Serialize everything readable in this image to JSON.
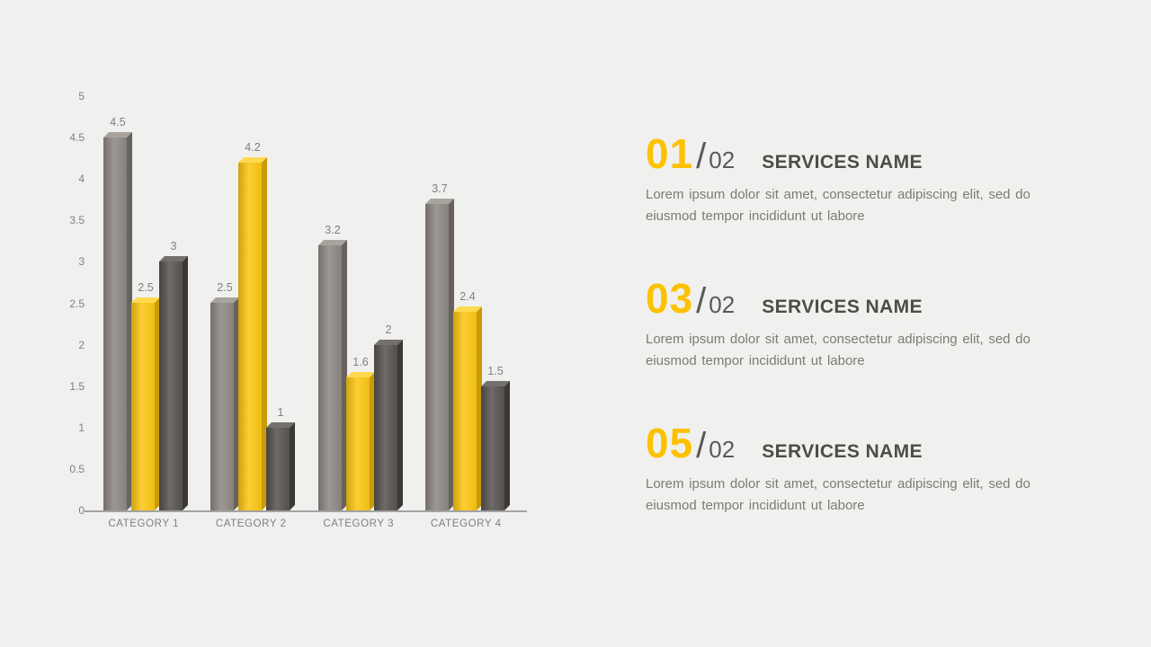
{
  "background_color": "#f0f0ee",
  "accent_color": "#fcc200",
  "chart_data": {
    "type": "bar",
    "categories": [
      "CATEGORY 1",
      "CATEGORY 2",
      "CATEGORY 3",
      "CATEGORY 4"
    ],
    "series": [
      {
        "name": "series-gray",
        "values": [
          4.5,
          2.5,
          3.2,
          3.7
        ],
        "colors": {
          "front": "#8d8782",
          "top": "#a8a39d",
          "side": "#67625e"
        }
      },
      {
        "name": "series-yellow",
        "values": [
          2.5,
          4.2,
          1.6,
          2.4
        ],
        "colors": {
          "front": "#fcc612",
          "top": "#ffd94f",
          "side": "#c89b0a"
        }
      },
      {
        "name": "series-dark",
        "values": [
          3,
          1,
          2,
          1.5
        ],
        "colors": {
          "front": "#57534f",
          "top": "#74706c",
          "side": "#3b3835"
        }
      }
    ],
    "ylim": [
      0,
      5
    ],
    "ytick_step": 0.5,
    "yticks": [
      "5",
      "4.5",
      "4",
      "3.5",
      "3",
      "2.5",
      "2",
      "1.5",
      "1",
      "0.5",
      "0"
    ],
    "grid": false,
    "legend": false,
    "title": "",
    "xlabel": "",
    "ylabel": "",
    "label_color": "#7f7f7f",
    "axis_color": "#a3a3a3"
  },
  "services": [
    {
      "number": "01",
      "slash": "/",
      "total": "02",
      "title": "SERVICES NAME",
      "body": "Lorem ipsum dolor sit amet, consectetur adipiscing elit, sed do eiusmod tempor incididunt ut labore"
    },
    {
      "number": "03",
      "slash": "/",
      "total": "02",
      "title": "SERVICES NAME",
      "body": "Lorem ipsum dolor sit amet, consectetur adipiscing elit, sed do eiusmod tempor incididunt ut labore"
    },
    {
      "number": "05",
      "slash": "/",
      "total": "02",
      "title": "SERVICES NAME",
      "body": "Lorem ipsum dolor sit amet, consectetur adipiscing elit, sed do eiusmod tempor incididunt ut labore"
    }
  ]
}
